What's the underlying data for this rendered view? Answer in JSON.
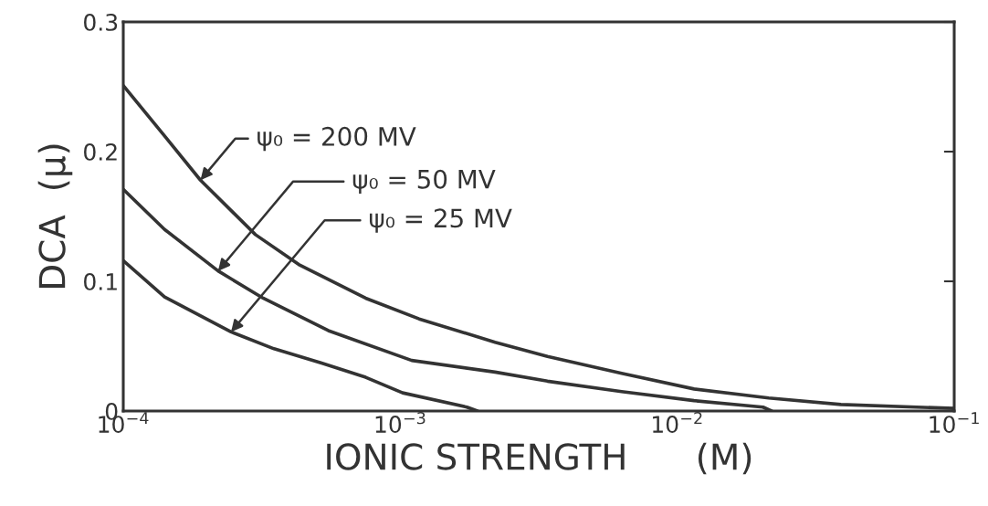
{
  "chart_data": {
    "type": "line",
    "xlabel": "IONIC STRENGTH      (M)",
    "ylabel": "DCA  (μ)",
    "log": "x",
    "xlim": [
      0.0001,
      0.1
    ],
    "xticks": [
      {
        "value": 0.0001,
        "label": "10$^{−4}$"
      },
      {
        "value": 0.001,
        "label": "10$^{−3}$"
      },
      {
        "value": 0.01,
        "label": "10$^{−2}$"
      },
      {
        "value": 0.1,
        "label": "10$^{−1}$"
      }
    ],
    "ylim": [
      0,
      0.3
    ],
    "yticks": [
      0,
      0.1,
      0.2,
      0.3
    ],
    "grid": false,
    "legend": false,
    "marker": "none",
    "line_style": "solid",
    "series": [
      {
        "name": "ψ₀ = 200 MV",
        "color": "#333333",
        "x": [
          0.0001,
          0.000141,
          0.00019,
          0.0003,
          0.00043,
          0.00075,
          0.00117,
          0.0022,
          0.0034,
          0.0063,
          0.0115,
          0.0214,
          0.039,
          0.1
        ],
        "values": [
          0.251,
          0.212,
          0.178,
          0.136,
          0.113,
          0.087,
          0.071,
          0.053,
          0.042,
          0.029,
          0.017,
          0.01,
          0.005,
          0.002
        ]
      },
      {
        "name": "ψ₀ = 50 MV",
        "color": "#333333",
        "x": [
          0.0001,
          0.000141,
          0.00022,
          0.00032,
          0.00055,
          0.0011,
          0.0022,
          0.0034,
          0.0063,
          0.0115,
          0.0204,
          0.0219
        ],
        "values": [
          0.171,
          0.14,
          0.108,
          0.087,
          0.062,
          0.039,
          0.03,
          0.023,
          0.015,
          0.008,
          0.003,
          0
        ]
      },
      {
        "name": "ψ₀ = 25 MV",
        "color": "#333333",
        "x": [
          0.0001,
          0.000141,
          0.000245,
          0.00035,
          0.00052,
          0.00075,
          0.00102,
          0.00174,
          0.0019
        ],
        "values": [
          0.116,
          0.088,
          0.061,
          0.048,
          0.037,
          0.026,
          0.014,
          0.003,
          0
        ]
      }
    ]
  }
}
